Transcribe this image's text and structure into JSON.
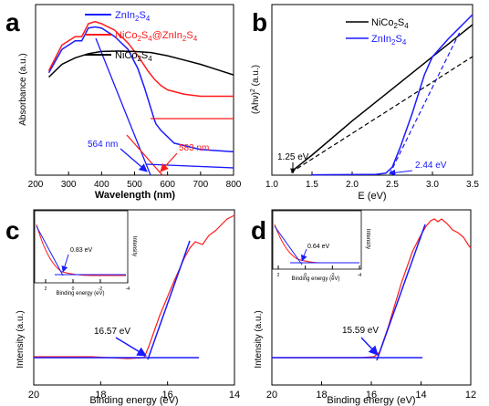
{
  "colors": {
    "black": "#000000",
    "blue": "#1a1aff",
    "red": "#ff1a1a"
  },
  "chart_data": [
    {
      "panel": "a",
      "type": "line",
      "xlabel": "Wavelength (nm)",
      "ylabel": "Absorbance (a.u.)",
      "xlim": [
        200,
        800
      ],
      "xticks": [
        "200",
        "300",
        "400",
        "500",
        "600",
        "700",
        "800"
      ],
      "legend_position": "top-right",
      "series": [
        {
          "name": "ZnIn",
          "sub1": "2",
          "mid": "S",
          "sub2": "4",
          "color": "#1a1aff",
          "x": [
            240,
            280,
            320,
            340,
            350,
            360,
            380,
            400,
            440,
            480,
            510,
            530,
            550,
            560,
            565,
            580,
            620,
            700,
            800
          ],
          "y": [
            4.8,
            5.9,
            6.3,
            6.3,
            6.6,
            6.9,
            6.95,
            6.9,
            6.5,
            5.9,
            5.0,
            4.1,
            3.1,
            2.6,
            2.4,
            2.1,
            1.5,
            1.2,
            1.1
          ]
        },
        {
          "name": "NiCo",
          "sub1": "2",
          "mid": "S",
          "sub2": "4",
          "extra": "@ZnIn",
          "sub3": "2",
          "extra2": "S",
          "sub4": "4",
          "color": "#ff1a1a",
          "x": [
            240,
            280,
            320,
            340,
            350,
            360,
            380,
            400,
            440,
            480,
            510,
            540,
            560,
            580,
            600,
            650,
            700,
            800
          ],
          "y": [
            4.9,
            6.1,
            6.5,
            6.5,
            6.8,
            7.1,
            7.2,
            7.1,
            6.8,
            6.2,
            5.6,
            4.9,
            4.5,
            4.2,
            4.0,
            3.8,
            3.7,
            3.7
          ]
        },
        {
          "name": "NiCo",
          "sub1": "2",
          "mid": "S",
          "sub2": "4",
          "color": "#000000",
          "x": [
            240,
            280,
            320,
            360,
            400,
            450,
            500,
            550,
            600,
            650,
            700,
            750,
            800
          ],
          "y": [
            4.6,
            5.2,
            5.5,
            5.7,
            5.8,
            5.82,
            5.8,
            5.75,
            5.6,
            5.4,
            5.2,
            4.95,
            4.7
          ]
        }
      ],
      "annotations": [
        {
          "text": "564 nm",
          "color": "#1a1aff"
        },
        {
          "text": "583 nm",
          "color": "#ff1a1a"
        }
      ]
    },
    {
      "panel": "b",
      "type": "line",
      "xlabel": "E (eV)",
      "ylabel": "(Ahν)",
      "ylabel_sup": "2",
      "ylabel_tail": " (a.u.)",
      "xlim": [
        1.0,
        3.5
      ],
      "xticks": [
        "1.0",
        "1.5",
        "2.0",
        "2.5",
        "3.0",
        "3.5"
      ],
      "legend_position": "top-left",
      "series": [
        {
          "name": "NiCo",
          "sub1": "2",
          "mid": "S",
          "sub2": "4",
          "color": "#000000",
          "x": [
            1.25,
            1.5,
            2.0,
            2.5,
            3.0,
            3.5
          ],
          "y": [
            0.2,
            1.0,
            2.7,
            4.3,
            5.9,
            7.5
          ]
        },
        {
          "name": "ZnIn",
          "sub1": "2",
          "mid": "S",
          "sub2": "4",
          "color": "#1a1aff",
          "x": [
            1.5,
            2.3,
            2.42,
            2.5,
            2.6,
            2.75,
            2.9,
            3.0,
            3.2,
            3.35,
            3.5
          ],
          "y": [
            0.02,
            0.04,
            0.1,
            0.4,
            1.4,
            3.1,
            5.0,
            5.9,
            6.8,
            7.4,
            8.0
          ]
        }
      ],
      "annotations": [
        {
          "text": "1.25 eV",
          "color": "#000000"
        },
        {
          "text": "2.44 eV",
          "color": "#1a1aff"
        }
      ]
    },
    {
      "panel": "c",
      "type": "line",
      "xlabel": "Binding energy (eV)",
      "ylabel": "Intensity (a.u.)",
      "xlim": [
        20,
        14
      ],
      "xticks": [
        "20",
        "18",
        "16",
        "14"
      ],
      "annotation": "16.57 eV",
      "inset": {
        "xlabel": "Binding energy (eV)",
        "ylabel": "Intensity",
        "xticks": [
          "2",
          "0",
          "-2",
          "-4"
        ],
        "annotation": "0.83 eV"
      }
    },
    {
      "panel": "d",
      "type": "line",
      "xlabel": "Binding energy (eV)",
      "ylabel": "Intensity (a.u.)",
      "xlim": [
        20,
        12
      ],
      "xticks": [
        "20",
        "18",
        "16",
        "14",
        "12"
      ],
      "annotation": "15.59 eV",
      "inset": {
        "xlabel": "Binding energy (eV)",
        "ylabel": "Intensity",
        "xticks": [
          "2",
          "0",
          "-2",
          "-4"
        ],
        "annotation": "0.64 eV"
      }
    }
  ]
}
